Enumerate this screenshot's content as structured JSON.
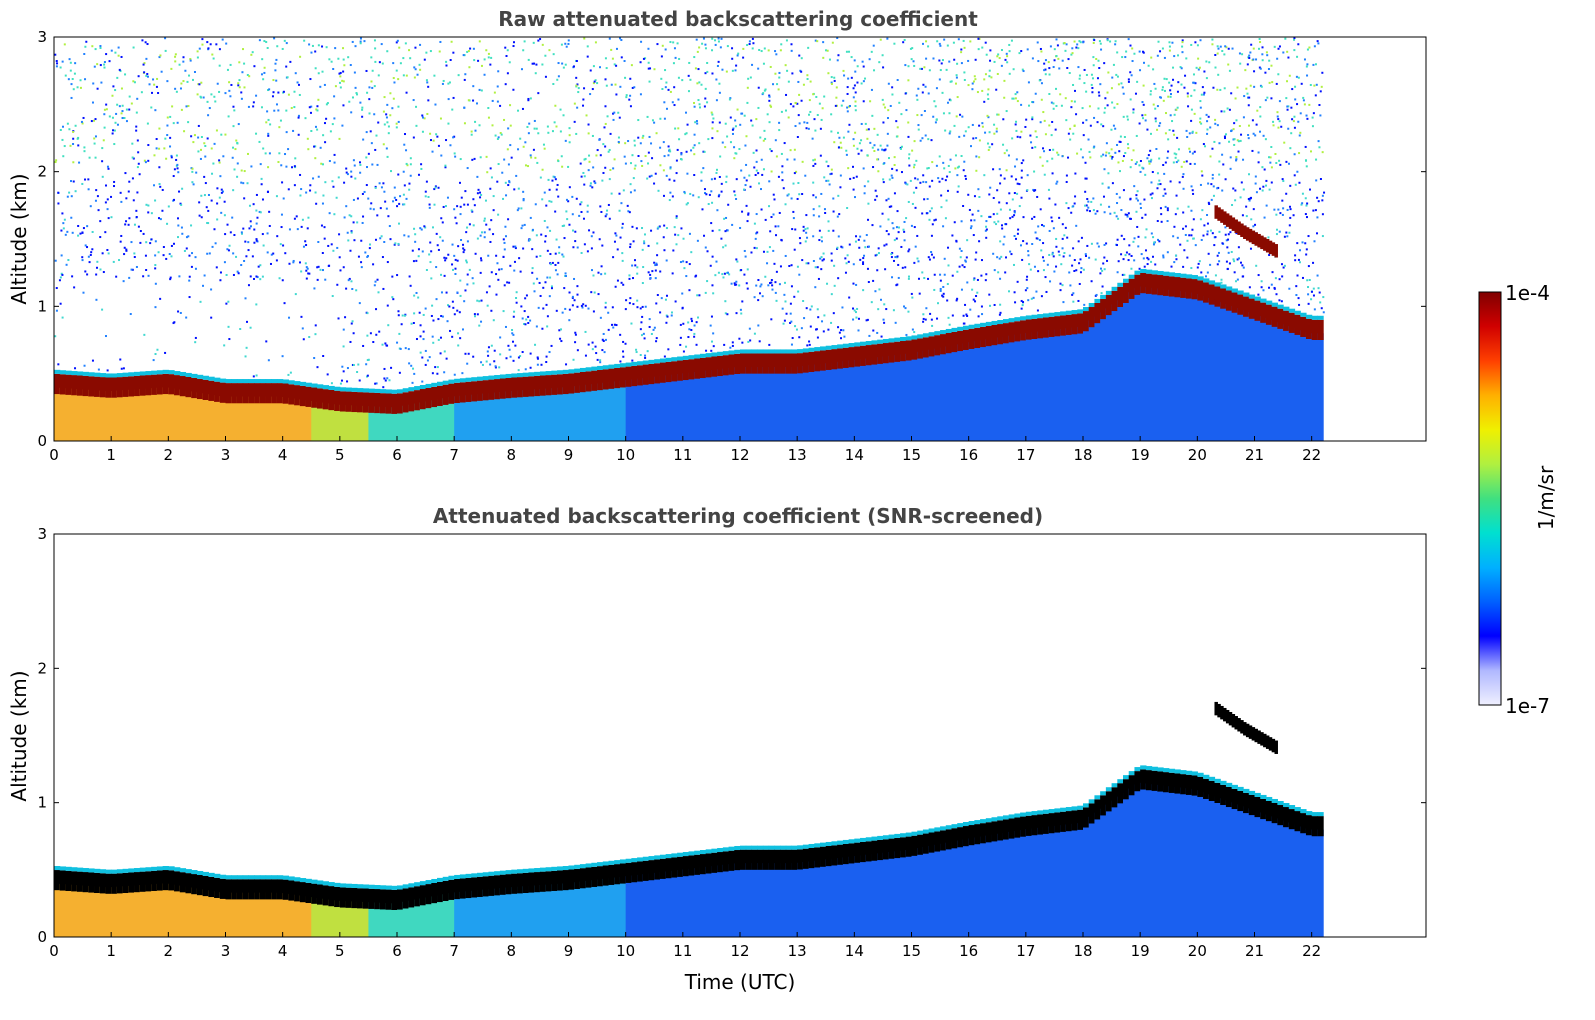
{
  "chart_data": [
    {
      "type": "heatmap",
      "title": "Raw attenuated backscattering coefficient",
      "xlabel": "",
      "ylabel": "Altitude (km)",
      "xlim": [
        0,
        24
      ],
      "ylim": [
        0,
        3
      ],
      "xticks": [
        "0",
        "1",
        "2",
        "3",
        "4",
        "5",
        "6",
        "7",
        "8",
        "9",
        "10",
        "11",
        "12",
        "13",
        "14",
        "15",
        "16",
        "17",
        "18",
        "19",
        "20",
        "21",
        "22"
      ],
      "yticks": [
        "0",
        "1",
        "2",
        "3"
      ],
      "data_end_time": 22.2,
      "layer_top_km": [
        {
          "t": 0,
          "h": 0.45
        },
        {
          "t": 1,
          "h": 0.42
        },
        {
          "t": 2,
          "h": 0.45
        },
        {
          "t": 3,
          "h": 0.38
        },
        {
          "t": 4,
          "h": 0.38
        },
        {
          "t": 5,
          "h": 0.32
        },
        {
          "t": 6,
          "h": 0.3
        },
        {
          "t": 7,
          "h": 0.38
        },
        {
          "t": 8,
          "h": 0.42
        },
        {
          "t": 9,
          "h": 0.45
        },
        {
          "t": 10,
          "h": 0.5
        },
        {
          "t": 11,
          "h": 0.55
        },
        {
          "t": 12,
          "h": 0.6
        },
        {
          "t": 13,
          "h": 0.6
        },
        {
          "t": 14,
          "h": 0.65
        },
        {
          "t": 15,
          "h": 0.7
        },
        {
          "t": 16,
          "h": 0.78
        },
        {
          "t": 17,
          "h": 0.85
        },
        {
          "t": 18,
          "h": 0.9
        },
        {
          "t": 19,
          "h": 1.2
        },
        {
          "t": 20,
          "h": 1.15
        },
        {
          "t": 21,
          "h": 1.0
        },
        {
          "t": 22,
          "h": 0.85
        }
      ],
      "elevated_layer_km": [
        {
          "t": 20.3,
          "h": 1.7
        },
        {
          "t": 20.8,
          "h": 1.55
        },
        {
          "t": 21.4,
          "h": 1.4
        }
      ],
      "noise_above_layer": true
    },
    {
      "type": "heatmap",
      "title": "Attenuated backscattering coefficient (SNR-screened)",
      "xlabel": "Time (UTC)",
      "ylabel": "Altitude (km)",
      "xlim": [
        0,
        24
      ],
      "ylim": [
        0,
        3
      ],
      "xticks": [
        "0",
        "1",
        "2",
        "3",
        "4",
        "5",
        "6",
        "7",
        "8",
        "9",
        "10",
        "11",
        "12",
        "13",
        "14",
        "15",
        "16",
        "17",
        "18",
        "19",
        "20",
        "21",
        "22"
      ],
      "yticks": [
        "0",
        "1",
        "2",
        "3"
      ],
      "data_end_time": 22.2,
      "noise_above_layer": false,
      "layer_color": "#000000"
    }
  ],
  "colorbar": {
    "max_label": "1e-4",
    "min_label": "1e-7",
    "unit_label": "1/m/sr",
    "colors": [
      "#f0f0ff",
      "#b0b8ff",
      "#0000ff",
      "#0060ff",
      "#00b0ff",
      "#00e0d0",
      "#40e080",
      "#b0f040",
      "#f0f000",
      "#ffb000",
      "#ff4000",
      "#d00000",
      "#800000"
    ]
  }
}
